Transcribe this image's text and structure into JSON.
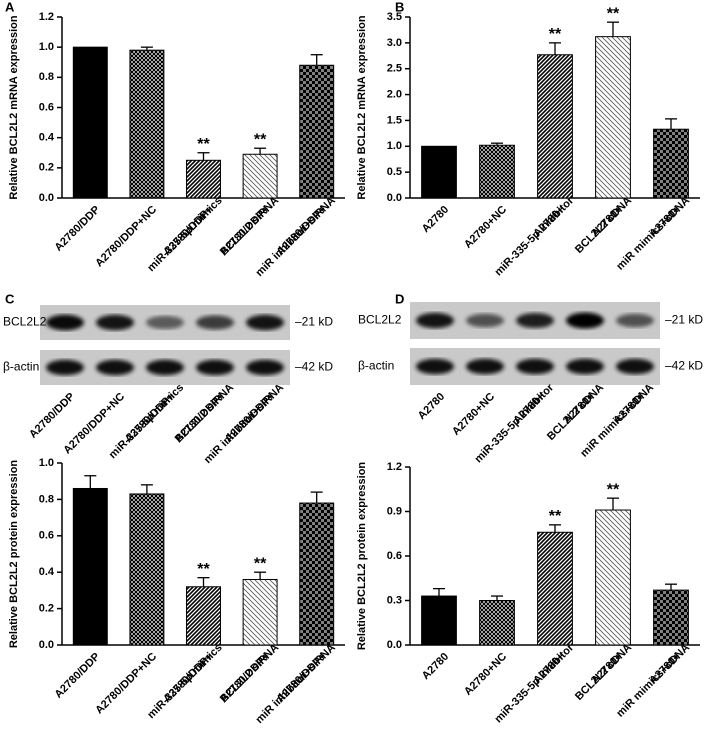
{
  "chart_data": [
    {
      "type": "bar",
      "panel": "A",
      "ylabel": "Relative BCL2L2 mRNA expression",
      "categories": [
        [
          "A2780/DDP"
        ],
        [
          "A2780/DDP+NC"
        ],
        [
          "A2780/DDP+",
          "miR-335-5p mimics"
        ],
        [
          "A2780/DDP+",
          "BCL2L2 siRNA"
        ],
        [
          "A2780/DDP+",
          "miR inhibitor+siRNA"
        ]
      ],
      "values": [
        1.0,
        0.98,
        0.25,
        0.29,
        0.88
      ],
      "errors": [
        0,
        0.02,
        0.05,
        0.04,
        0.07
      ],
      "significance": [
        null,
        null,
        "**",
        "**",
        null
      ],
      "ylim": [
        0,
        1.2
      ],
      "yticks": [
        {
          "value": 0,
          "label": "0.0"
        },
        {
          "value": 0.2,
          "label": "0.2"
        },
        {
          "value": 0.4,
          "label": "0.4"
        },
        {
          "value": 0.6,
          "label": "0.6"
        },
        {
          "value": 0.8,
          "label": "0.8"
        },
        {
          "value": 1.0,
          "label": "1.0"
        },
        {
          "value": 1.2,
          "label": "1.2"
        }
      ]
    },
    {
      "type": "bar",
      "panel": "B",
      "ylabel": "Relative BCL2L2 mRNA expression",
      "categories": [
        [
          "A2780"
        ],
        [
          "A2780+NC"
        ],
        [
          "A2780+",
          "miR-335-5p inhibitor"
        ],
        [
          "A2780+",
          "BCL2L2 cDNA"
        ],
        [
          "A2780+",
          "miR mimics+cDNA"
        ]
      ],
      "values": [
        1.0,
        1.02,
        2.77,
        3.12,
        1.33
      ],
      "errors": [
        0,
        0.04,
        0.23,
        0.28,
        0.2
      ],
      "significance": [
        null,
        null,
        "**",
        "**",
        null
      ],
      "ylim": [
        0,
        3.5
      ],
      "yticks": [
        {
          "value": 0,
          "label": "0.0"
        },
        0.5,
        {
          "value": 1.0,
          "label": "1.0"
        },
        1.5,
        {
          "value": 2.0,
          "label": "2.0"
        },
        2.5,
        {
          "value": 3.0,
          "label": "3.0"
        },
        3.5
      ]
    },
    {
      "type": "bar",
      "ylabel": "Relative BCL2L2 protein expression",
      "categories": [
        [
          "A2780/DDP"
        ],
        [
          "A2780/DDP+NC"
        ],
        [
          "A2780/DDP+",
          "miR-335-5p mimics"
        ],
        [
          "A2780/DDP+",
          "BCL2L2 siRNA"
        ],
        [
          "A2780/DDP+",
          "miR inhibitor+siRNA"
        ]
      ],
      "values": [
        0.86,
        0.83,
        0.32,
        0.36,
        0.78
      ],
      "errors": [
        0.07,
        0.05,
        0.05,
        0.04,
        0.06
      ],
      "significance": [
        null,
        null,
        "**",
        "**",
        null
      ],
      "ylim": [
        0,
        1.0
      ],
      "yticks": [
        {
          "value": 0,
          "label": "0.0"
        },
        {
          "value": 0.2,
          "label": "0.2"
        },
        {
          "value": 0.4,
          "label": "0.4"
        },
        {
          "value": 0.6,
          "label": "0.6"
        },
        {
          "value": 0.8,
          "label": "0.8"
        },
        {
          "value": 1.0,
          "label": "1.0"
        }
      ]
    },
    {
      "type": "bar",
      "ylabel": "Relative BCL2L2 protein expression",
      "categories": [
        [
          "A2780"
        ],
        [
          "A2780+NC"
        ],
        [
          "A2780+",
          "miR-335-5p inhibitor"
        ],
        [
          "A2780+",
          "BCL2L2 cDNA"
        ],
        [
          "A2780+",
          "miR mimics+cDNA"
        ]
      ],
      "values": [
        0.33,
        0.3,
        0.76,
        0.91,
        0.37
      ],
      "errors": [
        0.05,
        0.03,
        0.05,
        0.08,
        0.04
      ],
      "significance": [
        null,
        null,
        "**",
        "**",
        null
      ],
      "ylim": [
        0,
        1.2
      ],
      "yticks": [
        {
          "value": 0,
          "label": "0.0"
        },
        0.3,
        0.6,
        0.9,
        1.2
      ]
    }
  ],
  "blots": [
    {
      "panel": "C",
      "rows": [
        "BCL2L2",
        "β-actin"
      ],
      "sizes": [
        "–21 kD",
        "–42 kD"
      ],
      "lanes": [
        [
          "A2780/DDP"
        ],
        [
          "A2780/DDP+NC"
        ],
        [
          "A2780/DDP+",
          "miR-335-5p mimics"
        ],
        [
          "A2780/DDP+",
          "BCL2L2 siRNA"
        ],
        [
          "A2780/DDP+",
          "miR inhibitor+siRNA"
        ]
      ]
    },
    {
      "panel": "D",
      "rows": [
        "BCL2L2",
        "β-actin"
      ],
      "sizes": [
        "–21 kD",
        "–42 kD"
      ],
      "lanes": [
        [
          "A2780"
        ],
        [
          "A2780+NC"
        ],
        [
          "A2780+",
          "miR-335-5p inhibitor"
        ],
        [
          "A2780+",
          "BCL2L2 cDNA"
        ],
        [
          "A2780+",
          "miR mimics+cDNA"
        ]
      ]
    }
  ]
}
